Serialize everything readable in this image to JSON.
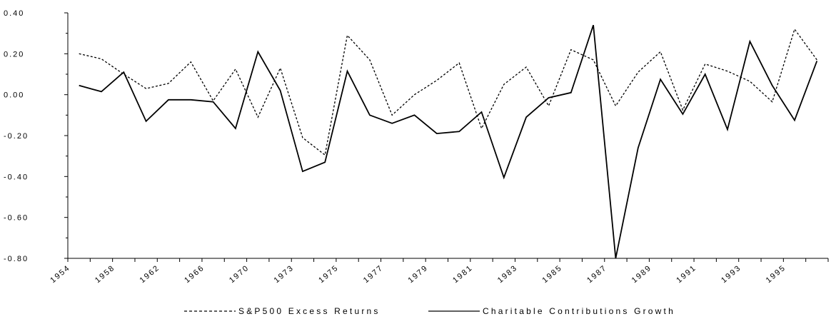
{
  "chart_data": {
    "type": "line",
    "title": "",
    "xlabel": "",
    "ylabel": "",
    "ylim": [
      -0.8,
      0.4
    ],
    "yticks": [
      "0.40",
      "0.20",
      "0.00",
      "-0.20",
      "-0.40",
      "-0.60",
      "-0.80"
    ],
    "xtick_labels": [
      "1954",
      "1958",
      "1962",
      "1966",
      "1970",
      "1973",
      "1975",
      "1977",
      "1979",
      "1981",
      "1983",
      "1985",
      "1987",
      "1989",
      "1991",
      "1993",
      "1995"
    ],
    "grid": false,
    "legend_position": "bottom",
    "series": [
      {
        "name": "S&P500 Excess Returns",
        "style": "dotted",
        "values": [
          0.2,
          0.175,
          0.1,
          0.03,
          0.055,
          0.16,
          -0.03,
          0.125,
          -0.11,
          0.13,
          -0.21,
          -0.295,
          0.29,
          0.17,
          -0.1,
          0.0,
          0.07,
          0.155,
          -0.165,
          0.05,
          0.135,
          -0.055,
          0.22,
          0.17,
          -0.055,
          0.11,
          0.21,
          -0.075,
          0.15,
          0.115,
          0.065,
          -0.035,
          0.32,
          0.17
        ]
      },
      {
        "name": "Charitable Contributions Growth",
        "style": "solid",
        "values": [
          0.045,
          0.015,
          0.11,
          -0.13,
          -0.025,
          -0.025,
          -0.035,
          -0.165,
          0.21,
          0.02,
          -0.375,
          -0.33,
          0.115,
          -0.1,
          -0.14,
          -0.1,
          -0.19,
          -0.18,
          -0.085,
          -0.405,
          -0.11,
          -0.015,
          0.01,
          0.34,
          -0.8,
          -0.26,
          0.075,
          -0.095,
          0.1,
          -0.17,
          0.26,
          0.045,
          -0.125,
          0.165
        ]
      }
    ]
  },
  "legend": {
    "s1": "S&P500 Excess Returns",
    "s2": "Charitable Contributions Growth"
  },
  "colors": {
    "line": "#000000",
    "background": "#ffffff"
  }
}
